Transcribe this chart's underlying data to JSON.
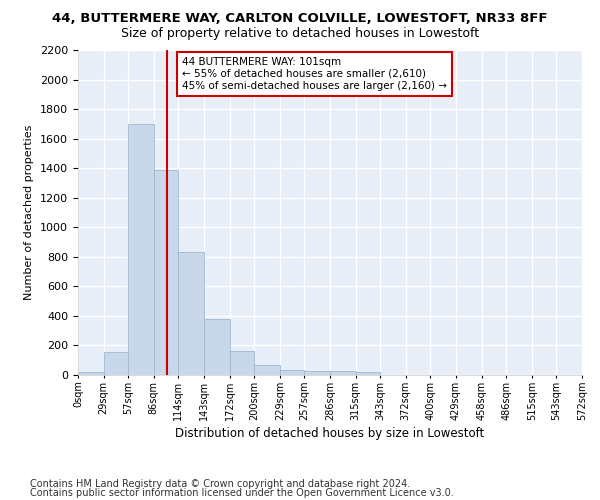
{
  "title": "44, BUTTERMERE WAY, CARLTON COLVILLE, LOWESTOFT, NR33 8FF",
  "subtitle": "Size of property relative to detached houses in Lowestoft",
  "xlabel": "Distribution of detached houses by size in Lowestoft",
  "ylabel": "Number of detached properties",
  "bar_values": [
    20,
    155,
    1700,
    1390,
    835,
    380,
    165,
    65,
    35,
    28,
    28,
    18,
    0,
    0,
    0,
    0,
    0,
    0,
    0,
    0
  ],
  "bin_edges": [
    0,
    29,
    57,
    86,
    114,
    143,
    172,
    200,
    229,
    257,
    286,
    315,
    343,
    372,
    400,
    429,
    458,
    486,
    515,
    543,
    572
  ],
  "bin_labels": [
    "0sqm",
    "29sqm",
    "57sqm",
    "86sqm",
    "114sqm",
    "143sqm",
    "172sqm",
    "200sqm",
    "229sqm",
    "257sqm",
    "286sqm",
    "315sqm",
    "343sqm",
    "372sqm",
    "400sqm",
    "429sqm",
    "458sqm",
    "486sqm",
    "515sqm",
    "543sqm",
    "572sqm"
  ],
  "bar_color": "#c8d8ea",
  "bar_edge_color": "#a0b8ce",
  "property_line_x": 101,
  "annotation_text": "44 BUTTERMERE WAY: 101sqm\n← 55% of detached houses are smaller (2,610)\n45% of semi-detached houses are larger (2,160) →",
  "annotation_box_color": "#ffffff",
  "annotation_box_edge": "#cc0000",
  "vline_color": "#cc0000",
  "ylim": [
    0,
    2200
  ],
  "yticks": [
    0,
    200,
    400,
    600,
    800,
    1000,
    1200,
    1400,
    1600,
    1800,
    2000,
    2200
  ],
  "bg_color": "#e8eef8",
  "grid_color": "#ffffff",
  "footer_line1": "Contains HM Land Registry data © Crown copyright and database right 2024.",
  "footer_line2": "Contains public sector information licensed under the Open Government Licence v3.0.",
  "title_fontsize": 9.5,
  "subtitle_fontsize": 9,
  "footer_fontsize": 7
}
